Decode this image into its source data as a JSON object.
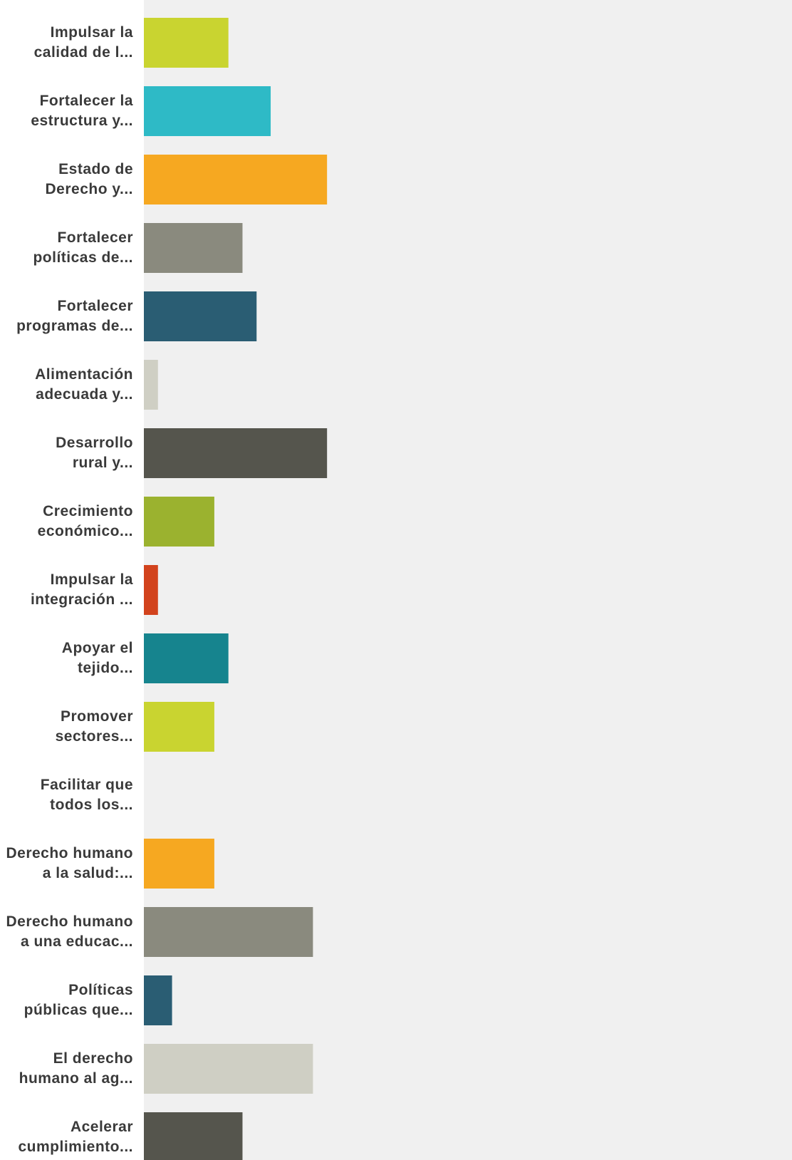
{
  "chart_data": {
    "type": "bar",
    "orientation": "horizontal",
    "grid": false,
    "categories": [
      [
        "Impulsar la",
        "calidad de l..."
      ],
      [
        "Fortalecer la",
        "estructura y..."
      ],
      [
        "Estado de",
        "Derecho y..."
      ],
      [
        "Fortalecer",
        "políticas de..."
      ],
      [
        "Fortalecer",
        "programas de..."
      ],
      [
        "Alimentación",
        "adecuada y..."
      ],
      [
        "Desarrollo",
        "rural y..."
      ],
      [
        "Crecimiento",
        "económico..."
      ],
      [
        "Impulsar la",
        "integración ..."
      ],
      [
        "Apoyar el",
        "tejido..."
      ],
      [
        "Promover",
        "sectores..."
      ],
      [
        "Facilitar que",
        "todos los..."
      ],
      [
        "Derecho humano",
        "a la salud:..."
      ],
      [
        "Derecho humano",
        "a una educac..."
      ],
      [
        "Políticas",
        "públicas que..."
      ],
      [
        "El derecho",
        "humano al ag..."
      ],
      [
        "Acelerar",
        "cumplimiento..."
      ]
    ],
    "values": [
      6,
      9,
      13,
      7,
      8,
      1,
      13,
      5,
      1,
      6,
      5,
      0,
      5,
      12,
      2,
      12,
      7
    ],
    "colors": [
      "#c9d430",
      "#2ebac6",
      "#f6a821",
      "#8a8a7e",
      "#2a5d73",
      "#cfcfc4",
      "#55554d",
      "#9bb22f",
      "#d2431d",
      "#16848e",
      "#c9d430",
      "#f6a821",
      "#f6a821",
      "#8a8a7e",
      "#2a5d73",
      "#cfcfc4",
      "#55554d"
    ],
    "plot_background": "#f0f0f0",
    "xlim": [
      0,
      46
    ]
  }
}
